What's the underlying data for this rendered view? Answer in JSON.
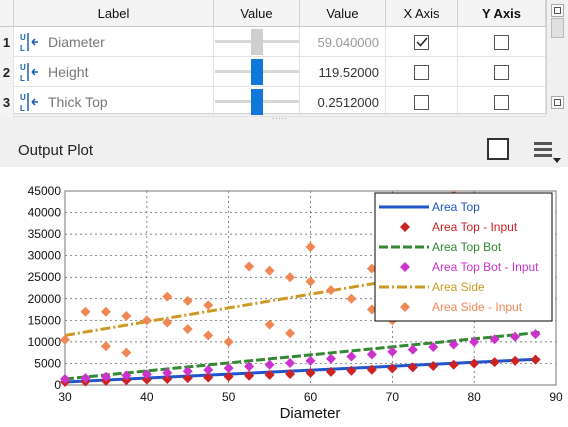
{
  "table": {
    "headers": [
      "Label",
      "Value",
      "Value",
      "X Axis",
      "Y Axis"
    ],
    "rows": [
      {
        "num": "1",
        "label": "Diameter",
        "value": "59.040000",
        "slider": 0.5,
        "x_axis": true,
        "y_axis": false,
        "active": false
      },
      {
        "num": "2",
        "label": "Height",
        "value": "119.52000",
        "slider": 0.5,
        "x_axis": false,
        "y_axis": false,
        "active": true
      },
      {
        "num": "3",
        "label": "Thick Top",
        "value": "0.2512000",
        "slider": 0.5,
        "x_axis": false,
        "y_axis": false,
        "active": true
      }
    ],
    "grip": "....."
  },
  "plot": {
    "title": "Output Plot",
    "square_button_icon": "square-icon",
    "menu_button_icon": "hamburger-menu-icon"
  },
  "chart_data": {
    "type": "scatter",
    "xlabel": "Diameter",
    "ylabel": "",
    "xlim": [
      30,
      90
    ],
    "ylim": [
      0,
      45000
    ],
    "x_ticks": [
      "30",
      "40",
      "50",
      "60",
      "70",
      "80",
      "90"
    ],
    "y_ticks": [
      "0",
      "5000",
      "10000",
      "15000",
      "20000",
      "25000",
      "30000",
      "35000",
      "40000",
      "45000"
    ],
    "grid": true,
    "legend_position": "top-right",
    "series": [
      {
        "name": "Area Top",
        "kind": "line",
        "color": "#2255cc",
        "x": [
          30,
          88
        ],
        "y": [
          700,
          6000
        ]
      },
      {
        "name": "Area Top - Input",
        "kind": "marker",
        "color": "#cc2222",
        "x": [
          30,
          32.5,
          35,
          37.5,
          40,
          42.5,
          45,
          47.5,
          50,
          52.5,
          55,
          57.5,
          60,
          62.5,
          65,
          67.5,
          70,
          72.5,
          75,
          77.5,
          80,
          82.5,
          85,
          87.5
        ],
        "y": [
          700,
          800,
          950,
          1100,
          1250,
          1400,
          1600,
          1750,
          1950,
          2150,
          2350,
          2550,
          2800,
          3050,
          3300,
          3550,
          3850,
          4100,
          4400,
          4700,
          5000,
          5300,
          5600,
          5900
        ]
      },
      {
        "name": "Area Top Bot",
        "kind": "line-dash",
        "color": "#338833",
        "x": [
          30,
          88
        ],
        "y": [
          1400,
          12200
        ]
      },
      {
        "name": "Area Top Bot - Input",
        "kind": "marker",
        "color": "#cc33cc",
        "x": [
          30,
          32.5,
          35,
          37.5,
          40,
          42.5,
          45,
          47.5,
          50,
          52.5,
          55,
          57.5,
          60,
          62.5,
          65,
          67.5,
          70,
          72.5,
          75,
          77.5,
          80,
          82.5,
          85,
          87.5
        ],
        "y": [
          1400,
          1600,
          1900,
          2200,
          2500,
          2800,
          3200,
          3500,
          3900,
          4300,
          4700,
          5100,
          5600,
          6100,
          6600,
          7100,
          7700,
          8200,
          8800,
          9400,
          10000,
          10600,
          11200,
          11800
        ]
      },
      {
        "name": "Area Side",
        "kind": "line-dashdot",
        "color": "#cc9922",
        "x": [
          30,
          88
        ],
        "y": [
          11500,
          30000
        ]
      },
      {
        "name": "Area Side - Input",
        "kind": "marker",
        "color": "#f08855",
        "x": [
          30,
          32.5,
          35,
          35,
          37.5,
          37.5,
          40,
          42.5,
          42.5,
          45,
          45,
          47.5,
          47.5,
          50,
          52.5,
          55,
          55,
          57.5,
          57.5,
          60,
          60,
          62.5,
          65,
          67.5,
          67.5,
          70,
          72.5,
          75,
          77.5,
          80,
          82.5,
          85,
          87.5
        ],
        "y": [
          10500,
          17000,
          17000,
          9000,
          16000,
          7500,
          15000,
          20500,
          14500,
          19500,
          13000,
          18500,
          11500,
          10000,
          27500,
          26500,
          14000,
          25000,
          12000,
          24000,
          32000,
          22000,
          20000,
          17500,
          27000,
          15000,
          24000,
          21000,
          44000,
          26000,
          23000,
          25500,
          28000
        ]
      }
    ]
  }
}
